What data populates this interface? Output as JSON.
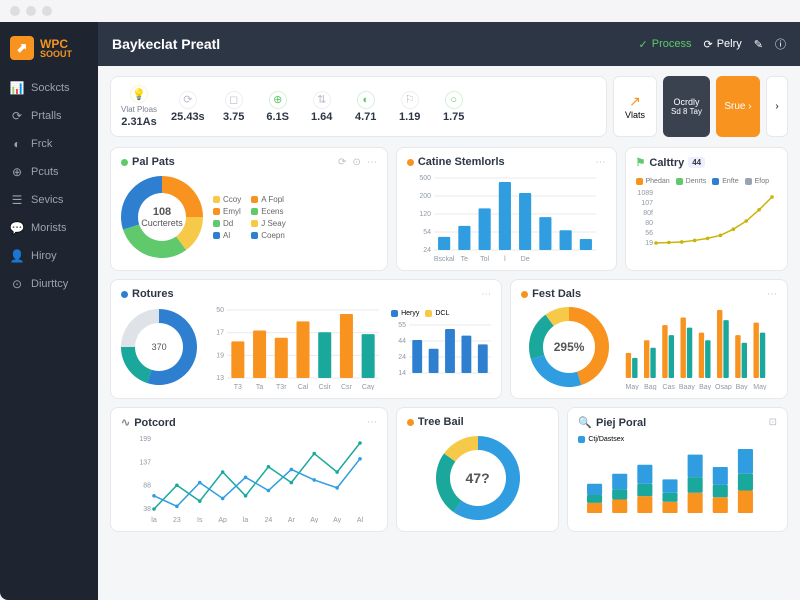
{
  "window": {
    "title": "Baykeclat Preatl"
  },
  "logo": {
    "badge_glyph": "⬈",
    "line1": "WPC",
    "line2": "SOOUT"
  },
  "sidebar": {
    "items": [
      {
        "icon": "📊",
        "label": "Sockcts"
      },
      {
        "icon": "⟳",
        "label": "Prtalls"
      },
      {
        "icon": "◐",
        "label": "Frck"
      },
      {
        "icon": "⊕",
        "label": "Pcuts"
      },
      {
        "icon": "☰",
        "label": "Sevics"
      },
      {
        "icon": "💬",
        "label": "Morists"
      },
      {
        "icon": "👤",
        "label": "Hiroy"
      },
      {
        "icon": "⊙",
        "label": "Diurttcy"
      }
    ]
  },
  "header": {
    "title": "Baykeclat Preatl",
    "actions": {
      "process": "Process",
      "pelry": "Pelry",
      "edit_icon": "✎",
      "info_icon": "ⓘ"
    }
  },
  "kpi": {
    "items": [
      {
        "icon": "💡",
        "color": "#f7c948",
        "label": "Vlat Ploas",
        "value": "2.31As"
      },
      {
        "icon": "⟳",
        "color": "#b8bec8",
        "label": "",
        "value": "25.43s"
      },
      {
        "icon": "◻",
        "color": "#b8bec8",
        "label": "",
        "value": "3.75"
      },
      {
        "icon": "⊕",
        "color": "#5fc96b",
        "label": "",
        "value": "6.1S"
      },
      {
        "icon": "⇅",
        "color": "#b8bec8",
        "label": "",
        "value": "1.64"
      },
      {
        "icon": "◐",
        "color": "#5fc96b",
        "label": "",
        "value": "4.71"
      },
      {
        "icon": "⚐",
        "color": "#b8bec8",
        "label": "",
        "value": "1.19"
      },
      {
        "icon": "○",
        "color": "#5fc96b",
        "label": "",
        "value": "1.75"
      }
    ],
    "vlats": {
      "icon": "↗",
      "label": "Vlats"
    },
    "dark_btn": {
      "line1": "Ocrdly",
      "line2": "Sd 8 Tay"
    },
    "orange_btn": {
      "label": "Srue ›"
    }
  },
  "charts": {
    "palpats": {
      "title": "Pal Pats",
      "icon_color": "#5fc96b",
      "center_value": "108",
      "center_label": "Cucrterets",
      "slices": [
        {
          "value": 25,
          "color": "#f7931e"
        },
        {
          "value": 15,
          "color": "#f7c948"
        },
        {
          "value": 30,
          "color": "#5fc96b"
        },
        {
          "value": 30,
          "color": "#2f7fd1"
        }
      ],
      "legend": [
        {
          "sw": "#f7c948",
          "label": "Ccoy"
        },
        {
          "sw": "#f7931e",
          "label": "Emyl"
        },
        {
          "sw": "#5fc96b",
          "label": "Dd"
        },
        {
          "sw": "#2f7fd1",
          "label": "Al"
        }
      ],
      "legend2": [
        {
          "sw": "#f7931e",
          "label": "A Fopl"
        },
        {
          "sw": "#5fc96b",
          "label": "Ecens"
        },
        {
          "sw": "#f7c948",
          "label": "J Seay"
        },
        {
          "sw": "#2f7fd1",
          "label": "Coepn"
        }
      ]
    },
    "catine": {
      "title": "Catine Stemlorls",
      "dot_color": "#f7931e",
      "yticks": [
        "500",
        "200",
        "120",
        "54",
        "24"
      ],
      "bars": [
        12,
        22,
        38,
        62,
        52,
        30,
        18,
        10
      ],
      "bar_color": "#2f9de0",
      "xlabels": [
        "Bsckal",
        "Te",
        "Tol",
        "l",
        "De",
        "",
        "",
        ""
      ]
    },
    "calttry": {
      "title": "Calttry",
      "icon_color": "#5fc96b",
      "badge": "44",
      "yticks": [
        "1089",
        "107",
        "80f",
        "80",
        "56",
        "19"
      ],
      "legend": [
        {
          "sw": "#f7931e",
          "label": "Phedan"
        },
        {
          "sw": "#5fc96b",
          "label": "Denrts"
        },
        {
          "sw": "#2f7fd1",
          "label": "Enfte"
        },
        {
          "sw": "#9aa3b0",
          "label": "Efop"
        }
      ],
      "line": {
        "points": [
          5,
          6,
          7,
          10,
          14,
          20,
          32,
          48,
          70,
          95
        ],
        "color": "#c9b40a"
      }
    },
    "rotures": {
      "title": "Rotures",
      "donut_slices": [
        {
          "value": 55,
          "color": "#2f7fd1"
        },
        {
          "value": 20,
          "color": "#1aa89c"
        },
        {
          "value": 25,
          "color": "#dfe3e8"
        }
      ],
      "donut_label": "370",
      "bars": {
        "values": [
          40,
          52,
          44,
          62,
          50,
          70,
          48
        ],
        "colors": [
          "#f7931e",
          "#f7931e",
          "#f7931e",
          "#f7931e",
          "#1aa89c",
          "#f7931e",
          "#1aa89c"
        ],
        "yticks": [
          "50",
          "17",
          "19",
          "13"
        ],
        "xlabels": [
          "T3",
          "Ta",
          "T3r",
          "Cal",
          "Cslr",
          "Csr",
          "Cay"
        ]
      },
      "mini": {
        "legend": [
          {
            "sw": "#2f7fd1",
            "label": "Heryy"
          },
          {
            "sw": "#f7c948",
            "label": "DCL"
          }
        ],
        "yticks": [
          "55",
          "44",
          "24",
          "14"
        ],
        "bars": [
          30,
          22,
          40,
          34,
          26
        ],
        "color": "#2f7fd1"
      }
    },
    "festdals": {
      "title": "Fest Dals",
      "donut_value": "295%",
      "slices": [
        {
          "value": 45,
          "color": "#f7931e"
        },
        {
          "value": 25,
          "color": "#2f9de0"
        },
        {
          "value": 20,
          "color": "#1aa89c"
        },
        {
          "value": 10,
          "color": "#f7c948"
        }
      ],
      "bars": {
        "values": [
          [
            20,
            16
          ],
          [
            30,
            24
          ],
          [
            42,
            34
          ],
          [
            48,
            40
          ],
          [
            36,
            30
          ],
          [
            54,
            46
          ],
          [
            34,
            28
          ],
          [
            44,
            36
          ]
        ],
        "colors": [
          "#f7931e",
          "#1aa89c"
        ],
        "xlabels": [
          "May",
          "Bag",
          "Cas",
          "Baay",
          "Bay",
          "Osap",
          "Bay",
          "May"
        ]
      }
    },
    "potcord": {
      "title": "Potcord",
      "yticks": [
        "199",
        "137",
        "88",
        "38"
      ],
      "lines": [
        {
          "points": [
            20,
            38,
            26,
            48,
            30,
            52,
            40,
            62,
            48,
            70
          ],
          "color": "#1aa89c"
        },
        {
          "points": [
            30,
            22,
            40,
            28,
            44,
            34,
            50,
            42,
            36,
            58
          ],
          "color": "#2f9de0"
        }
      ],
      "xlabels": [
        "la",
        "23",
        "Is",
        "Ap",
        "la",
        "24",
        "Ar",
        "Ay",
        "Ay",
        "Al"
      ]
    },
    "treebail": {
      "title": "Tree Bail",
      "dot_color": "#f7931e",
      "center": "47?",
      "slices": [
        {
          "value": 60,
          "color": "#2f9de0"
        },
        {
          "value": 25,
          "color": "#1aa89c"
        },
        {
          "value": 15,
          "color": "#f7c948"
        }
      ]
    },
    "piejporal": {
      "title": "Piej Poral",
      "legend": [
        {
          "sw": "#2f9de0",
          "label": "Ctj/Dastsex"
        }
      ],
      "bars": {
        "values": [
          [
            18,
            14,
            20
          ],
          [
            24,
            18,
            28
          ],
          [
            30,
            22,
            34
          ],
          [
            20,
            16,
            24
          ],
          [
            36,
            28,
            40
          ],
          [
            28,
            22,
            32
          ],
          [
            40,
            30,
            44
          ]
        ],
        "colors": [
          "#f7931e",
          "#1aa89c",
          "#2f9de0"
        ]
      }
    }
  }
}
